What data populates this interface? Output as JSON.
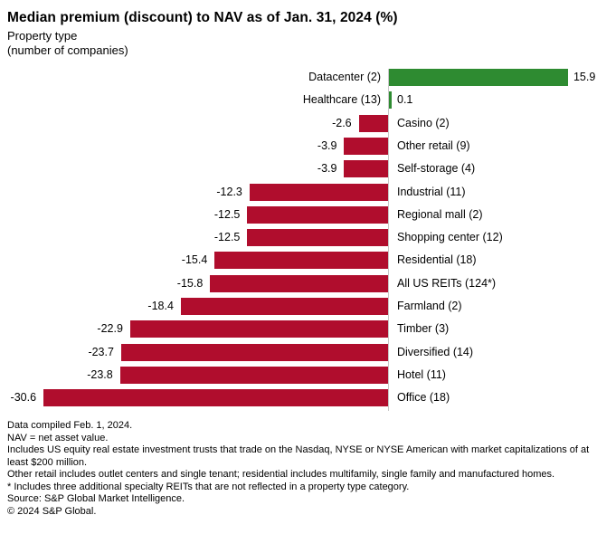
{
  "header": {
    "title": "Median premium (discount) to NAV as of Jan. 31, 2024 (%)",
    "subtitle_line1": "Property type",
    "subtitle_line2": "(number of companies)"
  },
  "chart_data": {
    "type": "bar",
    "orientation": "horizontal",
    "title": "Median premium (discount) to NAV as of Jan. 31, 2024 (%)",
    "xlabel": "Median premium (discount) to NAV (%)",
    "ylabel": "Property type (number of companies)",
    "xlim": [
      -32,
      18
    ],
    "grid": false,
    "value_labels_shown": true,
    "categories": [
      "Datacenter (2)",
      "Healthcare (13)",
      "Casino (2)",
      "Other retail (9)",
      "Self-storage (4)",
      "Industrial (11)",
      "Regional mall (2)",
      "Shopping center (12)",
      "Residential (18)",
      "All US REITs (124*)",
      "Farmland (2)",
      "Timber (3)",
      "Diversified (14)",
      "Hotel (11)",
      "Office (18)"
    ],
    "values": [
      15.9,
      0.1,
      -2.6,
      -3.9,
      -3.9,
      -12.3,
      -12.5,
      -12.5,
      -15.4,
      -15.8,
      -18.4,
      -22.9,
      -23.7,
      -23.8,
      -30.6
    ],
    "colors": {
      "positive": "#2e8b31",
      "negative": "#b00d2d",
      "axis_line": "#c8c8c8"
    }
  },
  "footnotes": [
    "Data compiled Feb. 1, 2024.",
    "NAV = net asset value.",
    "Includes US equity real estate investment trusts that trade on the Nasdaq, NYSE or NYSE American with market capitalizations of at least $200 million.",
    "Other retail includes outlet centers and single tenant; residential includes multifamily, single family and manufactured homes.",
    "* Includes three additional specialty REITs that are not reflected in a property type category.",
    "Source: S&P Global Market Intelligence.",
    "© 2024 S&P Global."
  ]
}
